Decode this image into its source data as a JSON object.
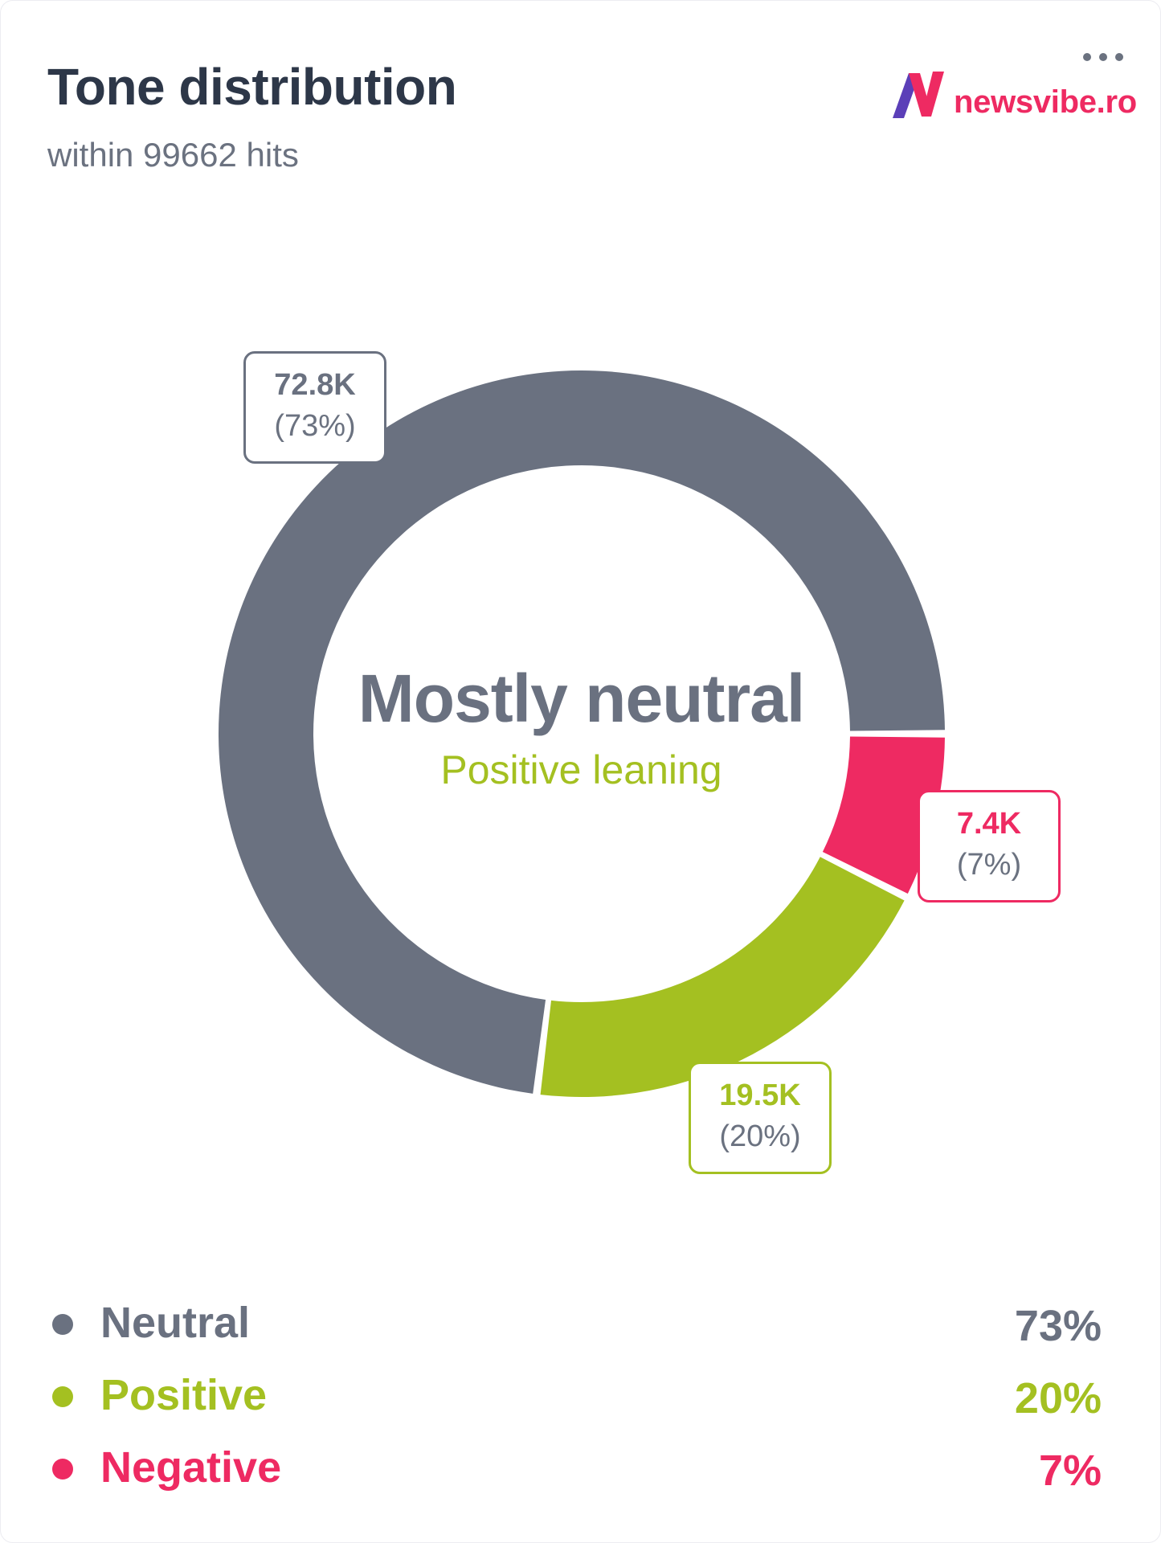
{
  "card": {
    "title": "Tone distribution",
    "subtitle": "within 99662 hits",
    "menu_icon": "more-horizontal-icon"
  },
  "brand": {
    "logo_icon": "newsvibe-n-logo",
    "name": "newsvibe.ro",
    "colors": {
      "pink": "#ee2a62",
      "purple": "#5b3fb8"
    }
  },
  "center": {
    "title": "Mostly neutral",
    "subtitle": "Positive leaning"
  },
  "chart_data": {
    "type": "pie",
    "variant": "donut",
    "categories": [
      "Neutral",
      "Positive",
      "Negative"
    ],
    "values": [
      72800,
      19500,
      7400
    ],
    "value_labels": [
      "72.8K",
      "19.5K",
      "7.4K"
    ],
    "percent_labels": [
      "(73%)",
      "(20%)",
      "(7%)"
    ],
    "colors": [
      "#6a7180",
      "#a4c021",
      "#ee2a62"
    ],
    "legend_position": "bottom"
  },
  "legend": [
    {
      "label": "Neutral",
      "value": "73%",
      "color": "#6a7180"
    },
    {
      "label": "Positive",
      "value": "20%",
      "color": "#a4c021"
    },
    {
      "label": "Negative",
      "value": "7%",
      "color": "#ee2a62"
    }
  ]
}
